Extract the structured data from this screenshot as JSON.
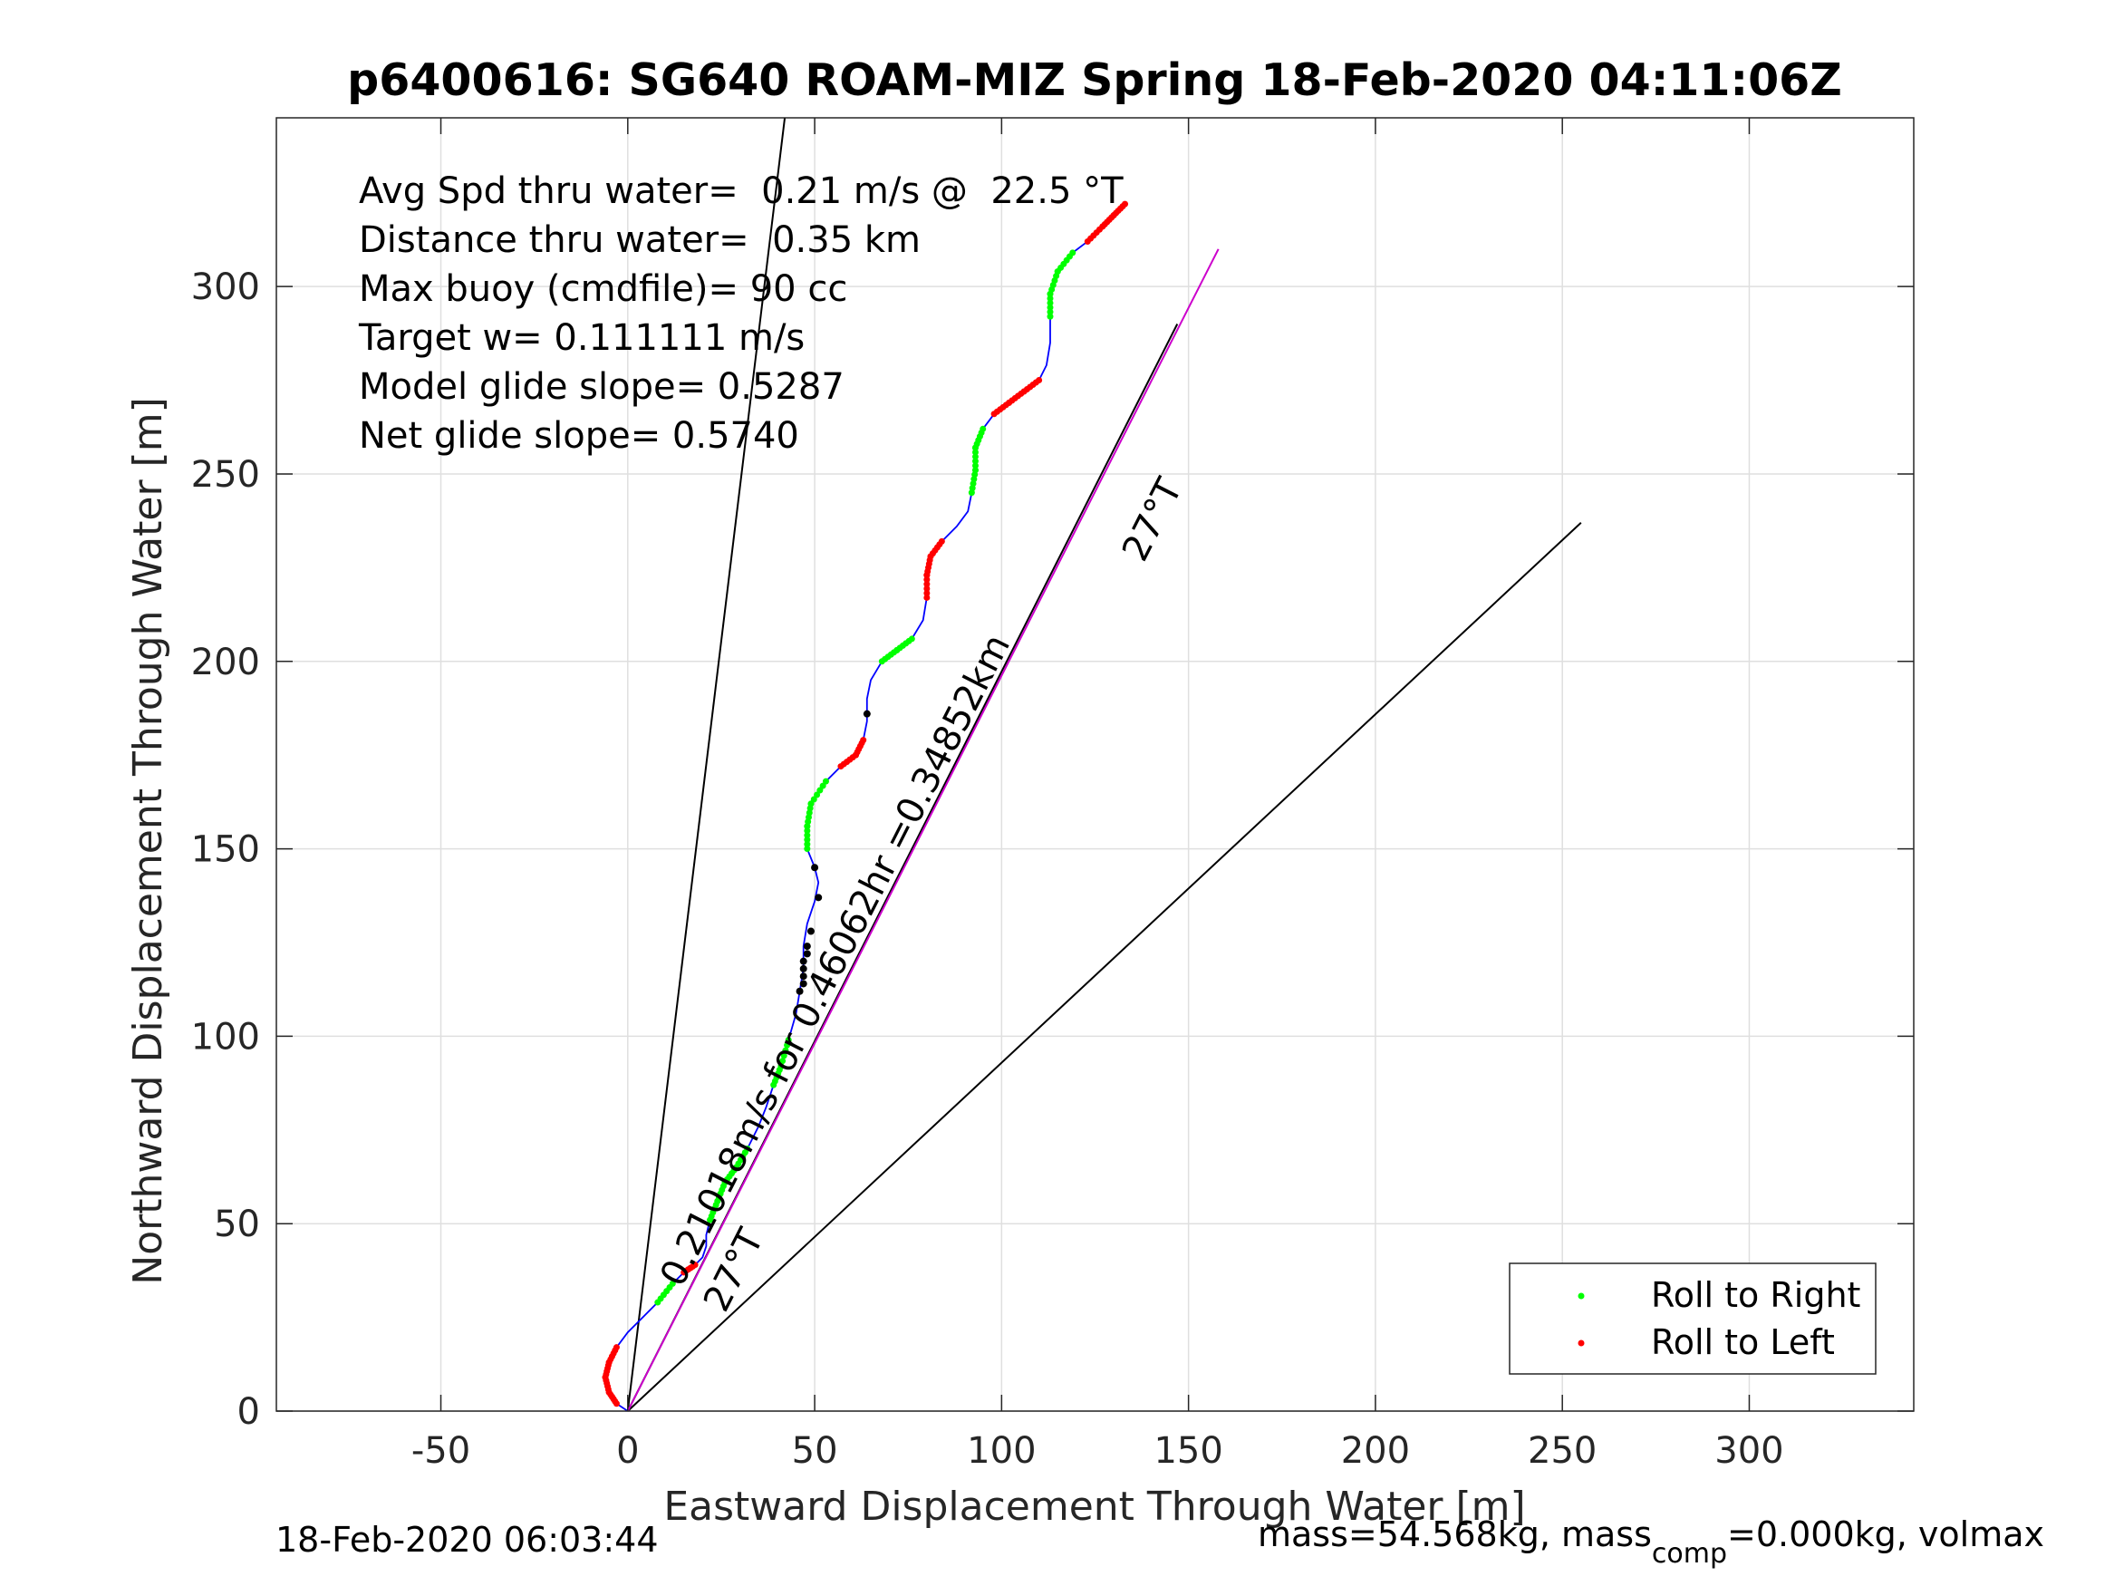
{
  "chart_data": {
    "type": "line",
    "title": "p6400616: SG640 ROAM-MIZ Spring 18-Feb-2020 04:11:06Z",
    "xlabel": "Eastward Displacement Through Water [m]",
    "ylabel": "Northward Displacement Through Water [m]",
    "xlim": [
      -94,
      344
    ],
    "ylim": [
      0,
      345
    ],
    "xticks": [
      -50,
      0,
      50,
      100,
      150,
      200,
      250,
      300
    ],
    "yticks": [
      0,
      50,
      100,
      150,
      200,
      250,
      300
    ],
    "grid": true,
    "legend": "bottom-right",
    "annotations": [
      "Avg Spd thru water=  0.21 m/s @  22.5 °T",
      "Distance thru water=  0.35 km",
      "Max buoy (cmdfile)= 90 cc",
      "Target w= 0.111111 m/s",
      "Model glide slope= 0.5287",
      "Net glide slope= 0.5740"
    ],
    "heading_label_upper": "27°T",
    "heading_label_lower": "27°T",
    "speed_label": "0.21018m/s for 0.46062hr =0.34852km",
    "footer_left": "18-Feb-2020 06:03:44",
    "footer_right_prefix": "mass=54.568kg, mass",
    "footer_right_sub": "comp",
    "footer_right_suffix": "=0.000kg, volmax",
    "series": [
      {
        "name": "Roll to Right",
        "color": "#00ff00"
      },
      {
        "name": "Roll to Left",
        "color": "#ff0000"
      }
    ],
    "reference_lines": [
      {
        "color": "#000000",
        "from": [
          0,
          0
        ],
        "to": [
          42,
          345
        ]
      },
      {
        "color": "#000000",
        "from": [
          0,
          0
        ],
        "to": [
          147,
          290
        ]
      },
      {
        "color": "#000000",
        "from": [
          0,
          0
        ],
        "to": [
          255,
          237
        ]
      },
      {
        "color": "#cc00cc",
        "from": [
          0,
          0
        ],
        "to": [
          158,
          310
        ]
      }
    ],
    "track": [
      [
        0,
        0
      ],
      [
        -3,
        2
      ],
      [
        -5,
        5
      ],
      [
        -6,
        9
      ],
      [
        -5,
        13
      ],
      [
        -3,
        17
      ],
      [
        0,
        21
      ],
      [
        4,
        25
      ],
      [
        8,
        29
      ],
      [
        12,
        34
      ],
      [
        15,
        37
      ],
      [
        18,
        39
      ],
      [
        20,
        41
      ],
      [
        21,
        44
      ],
      [
        21,
        47
      ],
      [
        22,
        51
      ],
      [
        24,
        56
      ],
      [
        26,
        61
      ],
      [
        29,
        65
      ],
      [
        32,
        70
      ],
      [
        35,
        76
      ],
      [
        37,
        81
      ],
      [
        39,
        87
      ],
      [
        41,
        92
      ],
      [
        43,
        99
      ],
      [
        45,
        106
      ],
      [
        46,
        112
      ],
      [
        47,
        118
      ],
      [
        47,
        124
      ],
      [
        48,
        130
      ],
      [
        50,
        136
      ],
      [
        51,
        141
      ],
      [
        50,
        145
      ],
      [
        48,
        150
      ],
      [
        48,
        156
      ],
      [
        49,
        162
      ],
      [
        53,
        168
      ],
      [
        57,
        172
      ],
      [
        61,
        175
      ],
      [
        63,
        179
      ],
      [
        64,
        184
      ],
      [
        64,
        190
      ],
      [
        65,
        195
      ],
      [
        68,
        200
      ],
      [
        72,
        203
      ],
      [
        76,
        206
      ],
      [
        79,
        211
      ],
      [
        80,
        217
      ],
      [
        80,
        223
      ],
      [
        81,
        228
      ],
      [
        84,
        232
      ],
      [
        88,
        236
      ],
      [
        91,
        240
      ],
      [
        92,
        245
      ],
      [
        93,
        251
      ],
      [
        93,
        257
      ],
      [
        95,
        262
      ],
      [
        98,
        266
      ],
      [
        102,
        269
      ],
      [
        106,
        272
      ],
      [
        110,
        275
      ],
      [
        112,
        279
      ],
      [
        113,
        285
      ],
      [
        113,
        292
      ],
      [
        113,
        298
      ],
      [
        115,
        304
      ],
      [
        119,
        309
      ],
      [
        123,
        312
      ],
      [
        127,
        316
      ],
      [
        130,
        319
      ],
      [
        133,
        322
      ]
    ],
    "right_segments": [
      [
        8,
        9
      ],
      [
        15,
        19
      ],
      [
        22,
        24
      ],
      [
        33,
        36
      ],
      [
        43,
        45
      ],
      [
        53,
        56
      ],
      [
        63,
        66
      ]
    ],
    "left_segments": [
      [
        1,
        5
      ],
      [
        10,
        11
      ],
      [
        37,
        39
      ],
      [
        47,
        50
      ],
      [
        57,
        60
      ],
      [
        67,
        70
      ]
    ],
    "black_points": [
      [
        64,
        186
      ],
      [
        51,
        137
      ],
      [
        50,
        145
      ],
      [
        49,
        128
      ],
      [
        48,
        124
      ],
      [
        48,
        122
      ],
      [
        47,
        120
      ],
      [
        47,
        118
      ],
      [
        47,
        116
      ],
      [
        47,
        114
      ],
      [
        46,
        112
      ]
    ]
  }
}
